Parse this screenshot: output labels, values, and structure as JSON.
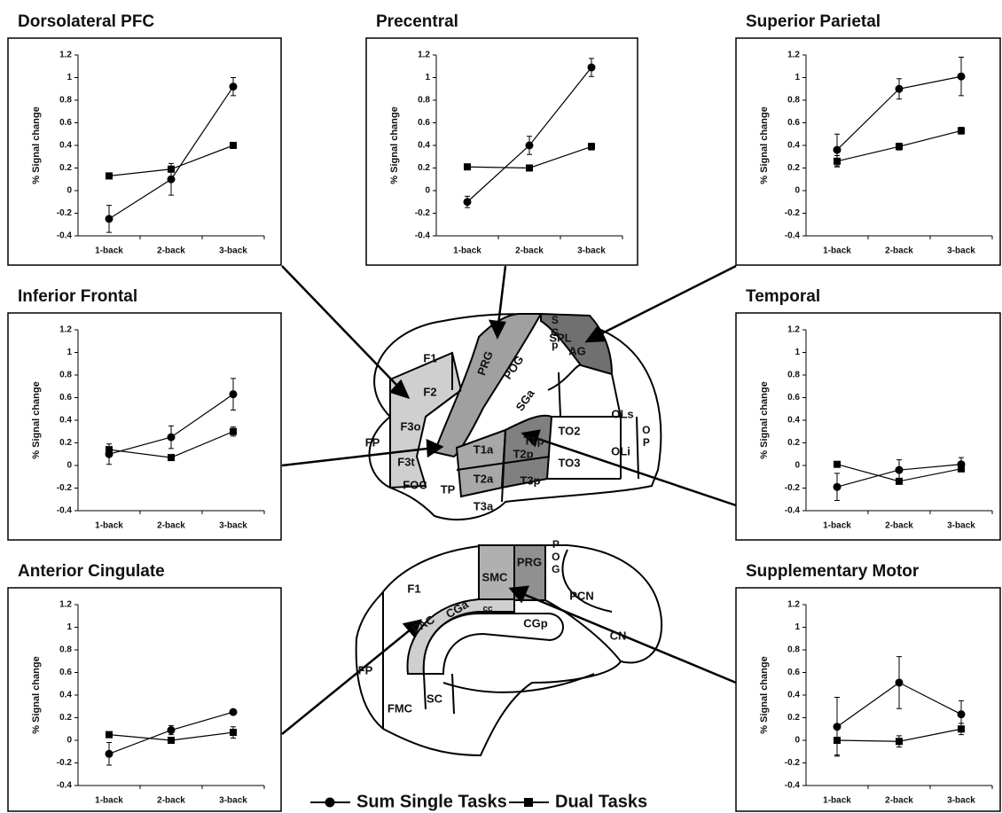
{
  "chart_data": [
    {
      "type": "line",
      "title": "Dorsolateral PFC",
      "ylabel": "% Signal change",
      "categories": [
        "1-back",
        "2-back",
        "3-back"
      ],
      "series": [
        {
          "marker": "circle",
          "color": "#000000",
          "values": [
            -0.25,
            0.1,
            0.92
          ],
          "errors": [
            0.12,
            0.14,
            0.08
          ]
        },
        {
          "marker": "square",
          "color": "#000000",
          "values": [
            0.13,
            0.19,
            0.4
          ],
          "errors": [
            0.02,
            0.02,
            0.02
          ]
        }
      ],
      "ylim": [
        -0.4,
        1.2
      ],
      "yticks": [
        -0.4,
        -0.2,
        0,
        0.2,
        0.4,
        0.6,
        0.8,
        1,
        1.2
      ]
    },
    {
      "type": "line",
      "title": "Precentral",
      "ylabel": "% Signal change",
      "categories": [
        "1-back",
        "2-back",
        "3-back"
      ],
      "series": [
        {
          "marker": "circle",
          "color": "#000000",
          "values": [
            -0.1,
            0.4,
            1.09
          ],
          "errors": [
            0.05,
            0.08,
            0.08
          ]
        },
        {
          "marker": "square",
          "color": "#000000",
          "values": [
            0.21,
            0.2,
            0.39
          ],
          "errors": [
            0.01,
            0.01,
            0.03
          ]
        }
      ],
      "ylim": [
        -0.4,
        1.2
      ],
      "yticks": [
        -0.4,
        -0.2,
        0,
        0.2,
        0.4,
        0.6,
        0.8,
        1,
        1.2
      ]
    },
    {
      "type": "line",
      "title": "Superior Parietal",
      "ylabel": "% Signal change",
      "categories": [
        "1-back",
        "2-back",
        "3-back"
      ],
      "series": [
        {
          "marker": "circle",
          "color": "#000000",
          "values": [
            0.36,
            0.9,
            1.01
          ],
          "errors": [
            0.14,
            0.09,
            0.17
          ]
        },
        {
          "marker": "square",
          "color": "#000000",
          "values": [
            0.26,
            0.39,
            0.53
          ],
          "errors": [
            0.05,
            0.03,
            0.03
          ]
        }
      ],
      "ylim": [
        -0.4,
        1.2
      ],
      "yticks": [
        -0.4,
        -0.2,
        0,
        0.2,
        0.4,
        0.6,
        0.8,
        1,
        1.2
      ]
    },
    {
      "type": "line",
      "title": "Inferior Frontal",
      "ylabel": "% Signal change",
      "categories": [
        "1-back",
        "2-back",
        "3-back"
      ],
      "series": [
        {
          "marker": "circle",
          "color": "#000000",
          "values": [
            0.1,
            0.25,
            0.63
          ],
          "errors": [
            0.09,
            0.1,
            0.14
          ]
        },
        {
          "marker": "square",
          "color": "#000000",
          "values": [
            0.14,
            0.07,
            0.3
          ],
          "errors": [
            0.02,
            0.01,
            0.04
          ]
        }
      ],
      "ylim": [
        -0.4,
        1.2
      ],
      "yticks": [
        -0.4,
        -0.2,
        0,
        0.2,
        0.4,
        0.6,
        0.8,
        1,
        1.2
      ]
    },
    {
      "type": "line",
      "title": "Temporal",
      "ylabel": "% Signal change",
      "categories": [
        "1-back",
        "2-back",
        "3-back"
      ],
      "series": [
        {
          "marker": "circle",
          "color": "#000000",
          "values": [
            -0.19,
            -0.04,
            0.01
          ],
          "errors": [
            0.12,
            0.09,
            0.06
          ]
        },
        {
          "marker": "square",
          "color": "#000000",
          "values": [
            0.01,
            -0.14,
            -0.03
          ],
          "errors": [
            0.01,
            0.01,
            0.02
          ]
        }
      ],
      "ylim": [
        -0.4,
        1.2
      ],
      "yticks": [
        -0.4,
        -0.2,
        0,
        0.2,
        0.4,
        0.6,
        0.8,
        1,
        1.2
      ]
    },
    {
      "type": "line",
      "title": "Anterior Cingulate",
      "ylabel": "% Signal change",
      "categories": [
        "1-back",
        "2-back",
        "3-back"
      ],
      "series": [
        {
          "marker": "circle",
          "color": "#000000",
          "values": [
            -0.12,
            0.09,
            0.25
          ],
          "errors": [
            0.1,
            0.04,
            0.01
          ]
        },
        {
          "marker": "square",
          "color": "#000000",
          "values": [
            0.05,
            0,
            0.07
          ],
          "errors": [
            0.01,
            0.01,
            0.05
          ]
        }
      ],
      "ylim": [
        -0.4,
        1.2
      ],
      "yticks": [
        -0.4,
        -0.2,
        0,
        0.2,
        0.4,
        0.6,
        0.8,
        1,
        1.2
      ]
    },
    {
      "type": "line",
      "title": "Supplementary Motor",
      "ylabel": "% Signal change",
      "categories": [
        "1-back",
        "2-back",
        "3-back"
      ],
      "series": [
        {
          "marker": "circle",
          "color": "#000000",
          "values": [
            0.12,
            0.51,
            0.23
          ],
          "errors": [
            0.26,
            0.23,
            0.12
          ]
        },
        {
          "marker": "square",
          "color": "#000000",
          "values": [
            0,
            -0.01,
            0.1
          ],
          "errors": [
            0.13,
            0.05,
            0.05
          ]
        }
      ],
      "ylim": [
        -0.4,
        1.2
      ],
      "yticks": [
        -0.4,
        -0.2,
        0,
        0.2,
        0.4,
        0.6,
        0.8,
        1,
        1.2
      ]
    }
  ],
  "legend": {
    "items": [
      {
        "name": "Sum Single Tasks",
        "marker": "circle"
      },
      {
        "name": "Dual Tasks",
        "marker": "square"
      }
    ]
  },
  "diagram": {
    "lateral": [
      "F1",
      "F2",
      "F3o",
      "F3t",
      "FP",
      "FOC",
      "TP",
      "T1a",
      "T2a",
      "T1p",
      "T2p",
      "T3a",
      "T3p",
      "PRG",
      "POG",
      "SGa",
      "SGp",
      "AG",
      "SPL",
      "TO2",
      "TO3",
      "OLs",
      "OLi",
      "OP"
    ],
    "medial": [
      "F1",
      "SMC",
      "PRG",
      "POG",
      "PCN",
      "CN",
      "PAC",
      "CGa",
      "cc",
      "CGp",
      "FP",
      "FMC",
      "SC"
    ]
  }
}
